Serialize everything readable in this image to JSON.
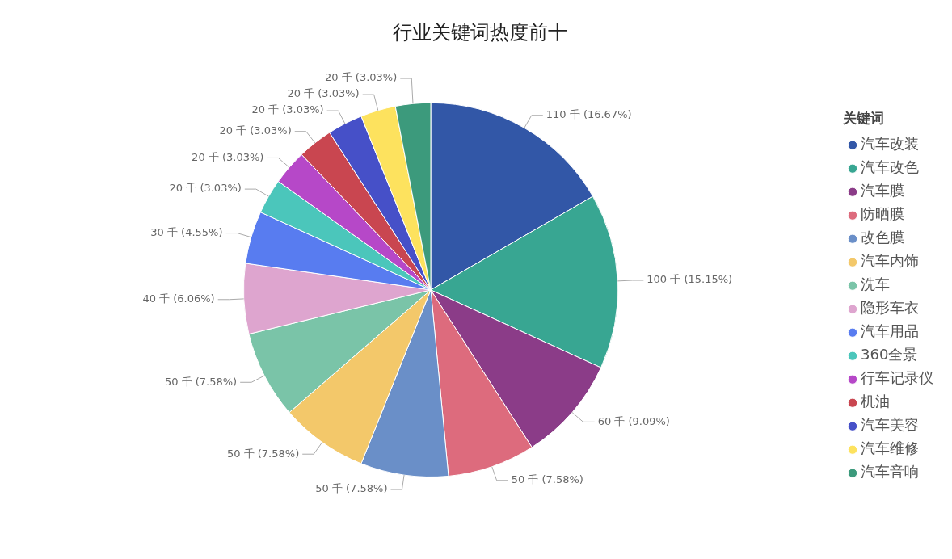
{
  "chart_data": {
    "type": "pie",
    "title": "行业关键词热度前十",
    "legend_title": "关键词",
    "legend": "right",
    "categories": [
      "汽车改装",
      "汽车改色",
      "汽车膜",
      "防晒膜",
      "改色膜",
      "汽车内饰",
      "洗车",
      "隐形车衣",
      "汽车用品",
      "360全景",
      "行车记录仪",
      "机油",
      "汽车美容",
      "汽车维修",
      "汽车音响"
    ],
    "values": [
      110,
      100,
      60,
      50,
      50,
      50,
      50,
      40,
      30,
      20,
      20,
      20,
      20,
      20,
      20
    ],
    "colors": [
      "#3257a7",
      "#38a692",
      "#8b3c88",
      "#dd6b7d",
      "#6a8fc8",
      "#f3c86a",
      "#7ac4a8",
      "#dea5cf",
      "#587cf0",
      "#4bc6bb",
      "#b648c8",
      "#c94650",
      "#4650c8",
      "#fde25e",
      "#3c9a7c"
    ],
    "value_labels": [
      "110 千 (16.67%)",
      "100 千 (15.15%)",
      "60 千 (9.09%)",
      "50 千 (7.58%)",
      "50 千 (7.58%)",
      "50 千 (7.58%)",
      "50 千 (7.58%)",
      "40 千 (6.06%)",
      "30 千 (4.55%)",
      "20 千 (3.03%)",
      "20 千 (3.03%)",
      "20 千 (3.03%)",
      "20 千 (3.03%)",
      "20 千 (3.03%)",
      "20 千 (3.03%)"
    ]
  }
}
